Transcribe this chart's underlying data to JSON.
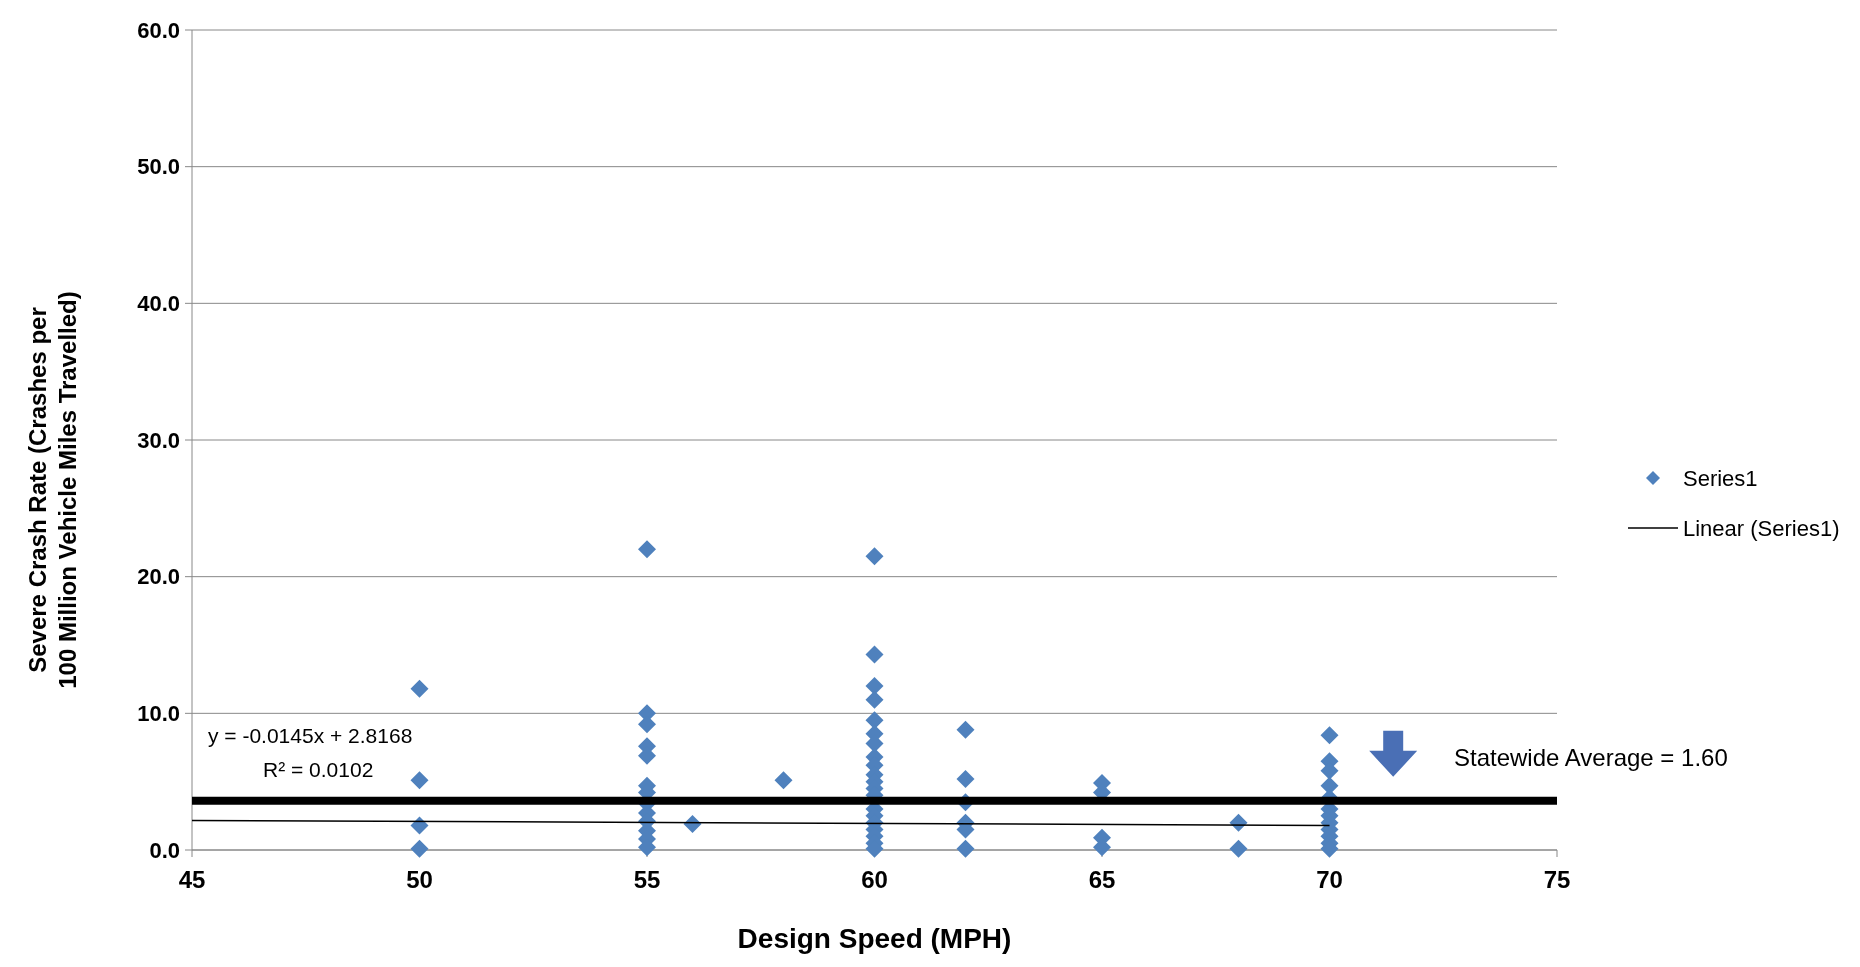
{
  "chart_data": {
    "type": "scatter",
    "xlabel": "Design Speed (MPH)",
    "ylabel": "Severe Crash Rate (Crashes per 100 Million Vehicle Miles Travelled)",
    "xlim": [
      45,
      75
    ],
    "xticks": [
      45,
      50,
      55,
      60,
      65,
      70,
      75
    ],
    "ylim": [
      0,
      60
    ],
    "yticks": [
      {
        "value": 0,
        "label": "0.0"
      },
      {
        "value": 10,
        "label": "10.0"
      },
      {
        "value": 20,
        "label": "20.0"
      },
      {
        "value": 30,
        "label": "30.0"
      },
      {
        "value": 40,
        "label": "40.0"
      },
      {
        "value": 50,
        "label": "50.0"
      },
      {
        "value": 60,
        "label": "60.0"
      }
    ],
    "grid": "y",
    "legend": "right",
    "marker": "diamond",
    "series": [
      {
        "name": "Series1",
        "color": "#4f81bd",
        "x": [
          50,
          50,
          50,
          50,
          55,
          55,
          55,
          55,
          55,
          55,
          55,
          55,
          55,
          55,
          55,
          55,
          55,
          56,
          58,
          60,
          60,
          60,
          60,
          60,
          60,
          60,
          60,
          60,
          60,
          60,
          60,
          60,
          60,
          60,
          60,
          60,
          60,
          60,
          60,
          62,
          62,
          62,
          62,
          62,
          62,
          65,
          65,
          65,
          65,
          68,
          68,
          70,
          70,
          70,
          70,
          70,
          70,
          70,
          70,
          70,
          70,
          70,
          70
        ],
        "values": [
          11.8,
          5.1,
          1.8,
          0.1,
          22.0,
          10.0,
          9.2,
          7.6,
          6.9,
          4.7,
          4.2,
          3.4,
          2.7,
          2.1,
          1.4,
          0.8,
          0.2,
          1.9,
          5.1,
          21.5,
          14.3,
          12.0,
          11.0,
          9.5,
          8.5,
          7.8,
          6.8,
          6.2,
          5.5,
          5.0,
          4.5,
          4.0,
          3.0,
          2.5,
          2.0,
          1.5,
          1.0,
          0.5,
          0.1,
          8.8,
          5.2,
          3.5,
          2.0,
          1.5,
          0.1,
          4.9,
          4.2,
          0.9,
          0.2,
          2.0,
          0.1,
          8.4,
          6.5,
          5.8,
          4.7,
          3.8,
          3.0,
          2.5,
          2.0,
          1.5,
          1.0,
          0.5,
          0.1
        ]
      },
      {
        "name": "Linear (Series1)",
        "type": "line",
        "color": "#000000",
        "x": [
          45,
          70
        ],
        "values": [
          2.16,
          1.8
        ],
        "marker": "none",
        "line_style": "solid"
      }
    ],
    "ref_lines": [
      {
        "axis": "y",
        "value": 3.6,
        "color": "#000000"
      }
    ],
    "annotations": [
      "y = -0.0145x + 2.8168",
      "R² = 0.0102",
      "Statewide Average = 1.60"
    ]
  }
}
